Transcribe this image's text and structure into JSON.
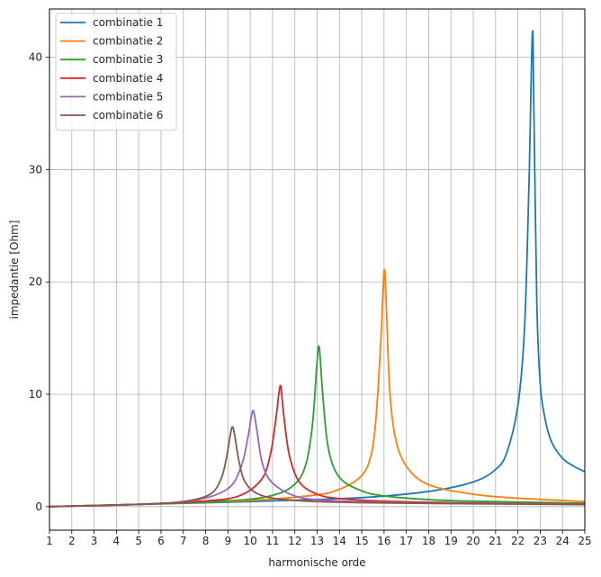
{
  "chart_data": {
    "type": "line",
    "xlabel": "harmonische orde",
    "ylabel": "impedantie [Ohm]",
    "xlim": [
      1,
      25
    ],
    "ylim": [
      -2.1,
      44.3
    ],
    "x_ticks": [
      1,
      2,
      3,
      4,
      5,
      6,
      7,
      8,
      9,
      10,
      11,
      12,
      13,
      14,
      15,
      16,
      17,
      18,
      19,
      20,
      21,
      22,
      23,
      24,
      25
    ],
    "y_ticks": [
      0,
      10,
      20,
      30,
      40
    ],
    "grid": true,
    "legend_position": "top-left",
    "series": [
      {
        "name": "combinatie 1",
        "color": "#1f77b4",
        "x": [
          1,
          5,
          10,
          15,
          18,
          20,
          21,
          21.5,
          22,
          22.3,
          22.5,
          22.65,
          22.72,
          22.85,
          23,
          23.2,
          23.5,
          24,
          24.5,
          25
        ],
        "y": [
          0.0,
          0.2,
          0.45,
          0.8,
          1.35,
          2.2,
          3.3,
          4.8,
          9.0,
          16.0,
          29.0,
          42.2,
          35.0,
          18.0,
          11.0,
          8.0,
          5.8,
          4.3,
          3.6,
          3.1
        ]
      },
      {
        "name": "combinatie 2",
        "color": "#ff7f0e",
        "x": [
          1,
          5,
          10,
          13,
          14,
          14.8,
          15.3,
          15.6,
          15.85,
          16.0,
          16.1,
          16.25,
          16.5,
          17,
          18,
          20,
          22,
          25
        ],
        "y": [
          0.0,
          0.2,
          0.55,
          1.05,
          1.55,
          2.4,
          3.8,
          7.0,
          14.5,
          21.0,
          18.0,
          10.5,
          6.2,
          3.6,
          1.95,
          1.1,
          0.75,
          0.45
        ]
      },
      {
        "name": "combinatie 3",
        "color": "#2ca02c",
        "x": [
          1,
          5,
          9,
          11,
          12,
          12.5,
          12.8,
          13.0,
          13.1,
          13.25,
          13.5,
          14,
          15,
          16,
          18,
          20,
          25
        ],
        "y": [
          0.0,
          0.2,
          0.5,
          1.0,
          2.0,
          3.8,
          7.5,
          13.0,
          14.1,
          10.0,
          5.2,
          2.6,
          1.4,
          0.95,
          0.62,
          0.48,
          0.3
        ]
      },
      {
        "name": "combinatie 4",
        "color": "#d62728",
        "x": [
          1,
          5,
          8,
          9.5,
          10.5,
          10.9,
          11.15,
          11.3,
          11.38,
          11.5,
          11.75,
          12.2,
          13,
          14,
          16,
          20,
          25
        ],
        "y": [
          0.0,
          0.2,
          0.5,
          0.95,
          2.4,
          4.6,
          7.8,
          10.3,
          10.6,
          8.2,
          4.6,
          2.2,
          1.1,
          0.72,
          0.48,
          0.32,
          0.22
        ]
      },
      {
        "name": "combinatie 5",
        "color": "#9467bd",
        "x": [
          1,
          5,
          7.5,
          9,
          9.6,
          9.9,
          10.05,
          10.15,
          10.3,
          10.55,
          11,
          12,
          13,
          15,
          18,
          25
        ],
        "y": [
          0.0,
          0.2,
          0.55,
          1.6,
          3.6,
          6.2,
          8.0,
          8.5,
          6.8,
          3.8,
          2.1,
          0.95,
          0.62,
          0.42,
          0.32,
          0.2
        ]
      },
      {
        "name": "combinatie 6",
        "color": "#8c564b",
        "x": [
          1,
          5,
          7,
          8.2,
          8.7,
          8.95,
          9.1,
          9.2,
          9.3,
          9.5,
          9.8,
          10.5,
          12,
          15,
          20,
          25
        ],
        "y": [
          0.0,
          0.2,
          0.45,
          1.1,
          2.5,
          4.5,
          6.3,
          7.1,
          6.4,
          4.0,
          2.1,
          1.0,
          0.55,
          0.35,
          0.25,
          0.18
        ]
      }
    ]
  }
}
